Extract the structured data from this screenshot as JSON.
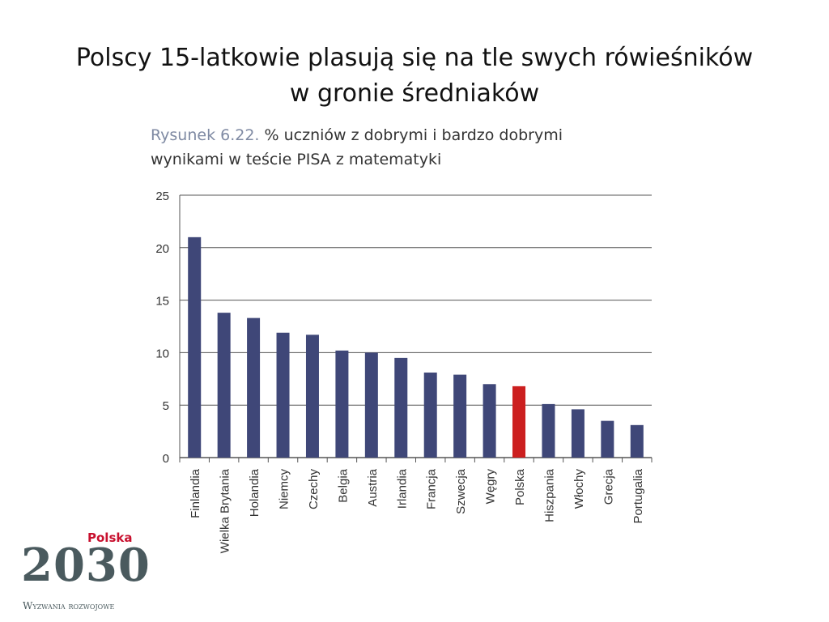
{
  "slide": {
    "title_line1": "Polscy 15-latkowie plasują się na tle swych rówieśników",
    "title_line2": "w gronie średniaków"
  },
  "caption": {
    "figure_number": "Rysunek 6.22.",
    "text_line1": " % uczniów z dobrymi i bardzo dobrymi",
    "text_line2": "wynikami w teście PISA z matematyki"
  },
  "logo": {
    "country": "Polska",
    "year": "2030",
    "tagline": "Wyzwania rozwojowe"
  },
  "colors": {
    "bar": "#3f4778",
    "highlight": "#cc1f1f",
    "grid": "#555555"
  },
  "chart_data": {
    "type": "bar",
    "categories": [
      "Finlandia",
      "Wielka Brytania",
      "Holandia",
      "Niemcy",
      "Czechy",
      "Belgia",
      "Austria",
      "Irlandia",
      "Francja",
      "Szwecja",
      "Węgry",
      "Polska",
      "Hiszpania",
      "Włochy",
      "Grecja",
      "Portugalia"
    ],
    "values": [
      21,
      13.8,
      13.3,
      11.9,
      11.7,
      10.2,
      10.0,
      9.5,
      8.1,
      7.9,
      7.0,
      6.8,
      5.1,
      4.6,
      3.5,
      3.1
    ],
    "highlight": "Polska",
    "ylim": [
      0,
      25
    ],
    "yticks": [
      0,
      5,
      10,
      15,
      20,
      25
    ],
    "grid": true,
    "title": "",
    "xlabel": "",
    "ylabel": ""
  }
}
